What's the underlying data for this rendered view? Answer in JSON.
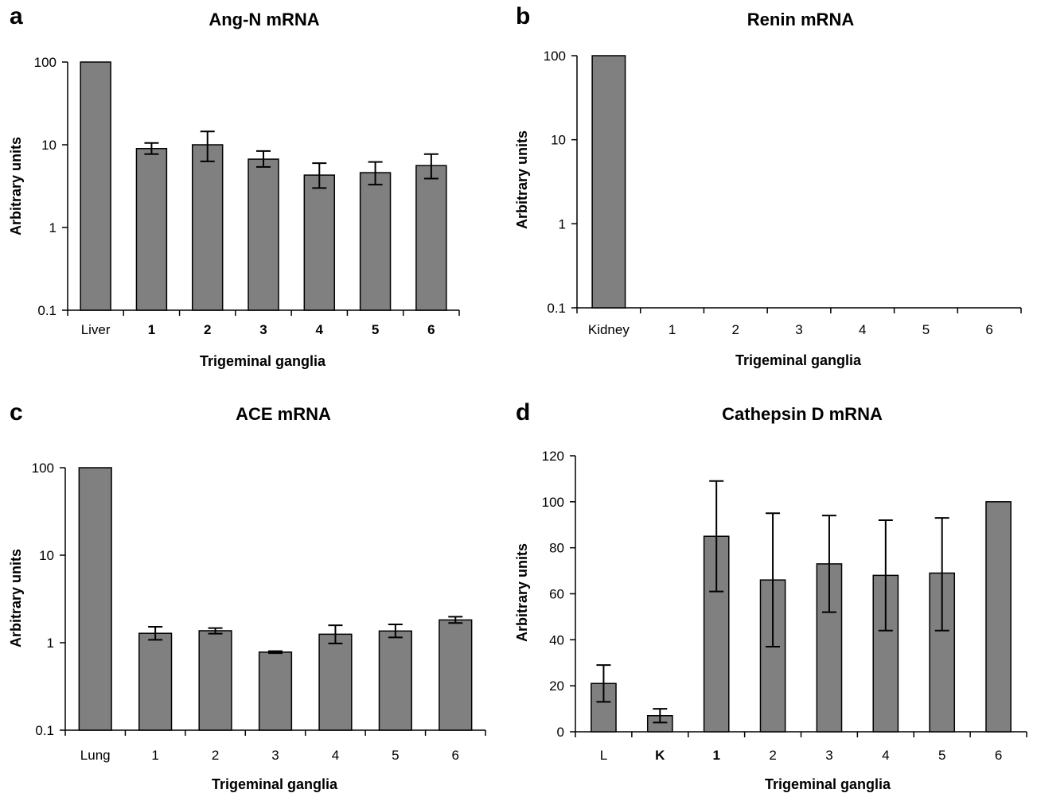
{
  "chart_data": [
    {
      "panel": "a",
      "type": "bar",
      "title": "Ang-N mRNA",
      "xlabel": "Trigeminal ganglia",
      "ylabel": "Arbitrary units",
      "yscale": "log",
      "ylim": [
        0.1,
        100
      ],
      "yticks": [
        "0.1",
        "1",
        "10",
        "100"
      ],
      "categories": [
        "Liver",
        "1",
        "2",
        "3",
        "4",
        "5",
        "6"
      ],
      "values": [
        100,
        9.0,
        10.0,
        6.7,
        4.3,
        4.6,
        5.6
      ],
      "err_low": [
        null,
        7.7,
        6.3,
        5.4,
        3.0,
        3.3,
        3.9
      ],
      "err_high": [
        null,
        10.5,
        14.5,
        8.4,
        6.0,
        6.2,
        7.7
      ]
    },
    {
      "panel": "b",
      "type": "bar",
      "title": "Renin mRNA",
      "xlabel": "Trigeminal ganglia",
      "ylabel": "Arbitrary units",
      "yscale": "log",
      "ylim": [
        0.1,
        100
      ],
      "yticks": [
        "0.1",
        "1",
        "10",
        "100"
      ],
      "categories": [
        "Kidney",
        "1",
        "2",
        "3",
        "4",
        "5",
        "6"
      ],
      "values": [
        100,
        null,
        null,
        null,
        null,
        null,
        null
      ],
      "err_low": [
        null,
        null,
        null,
        null,
        null,
        null,
        null
      ],
      "err_high": [
        null,
        null,
        null,
        null,
        null,
        null,
        null
      ]
    },
    {
      "panel": "c",
      "type": "bar",
      "title": "ACE mRNA",
      "xlabel": "Trigeminal ganglia",
      "ylabel": "Arbitrary units",
      "yscale": "log",
      "ylim": [
        0.1,
        100
      ],
      "yticks": [
        "0.1",
        "1",
        "10",
        "100"
      ],
      "categories": [
        "Lung",
        "1",
        "2",
        "3",
        "4",
        "5",
        "6"
      ],
      "values": [
        100,
        1.28,
        1.37,
        0.78,
        1.25,
        1.36,
        1.82
      ],
      "err_low": [
        null,
        1.08,
        1.27,
        0.76,
        0.98,
        1.15,
        1.68
      ],
      "err_high": [
        null,
        1.52,
        1.47,
        0.8,
        1.58,
        1.62,
        1.98
      ]
    },
    {
      "panel": "d",
      "type": "bar",
      "title": "Cathepsin D mRNA",
      "xlabel": "Trigeminal ganglia",
      "ylabel": "Arbitrary units",
      "yscale": "linear",
      "ylim": [
        0,
        120
      ],
      "yticks": [
        "0",
        "20",
        "40",
        "60",
        "80",
        "100",
        "120"
      ],
      "categories": [
        "L",
        "K",
        "1",
        "2",
        "3",
        "4",
        "5",
        "6"
      ],
      "values": [
        21,
        7,
        85,
        66,
        73,
        68,
        69,
        100
      ],
      "err_low": [
        13,
        4,
        61,
        37,
        52,
        44,
        44,
        null
      ],
      "err_high": [
        29,
        10,
        109,
        95,
        94,
        92,
        93,
        null
      ]
    }
  ]
}
